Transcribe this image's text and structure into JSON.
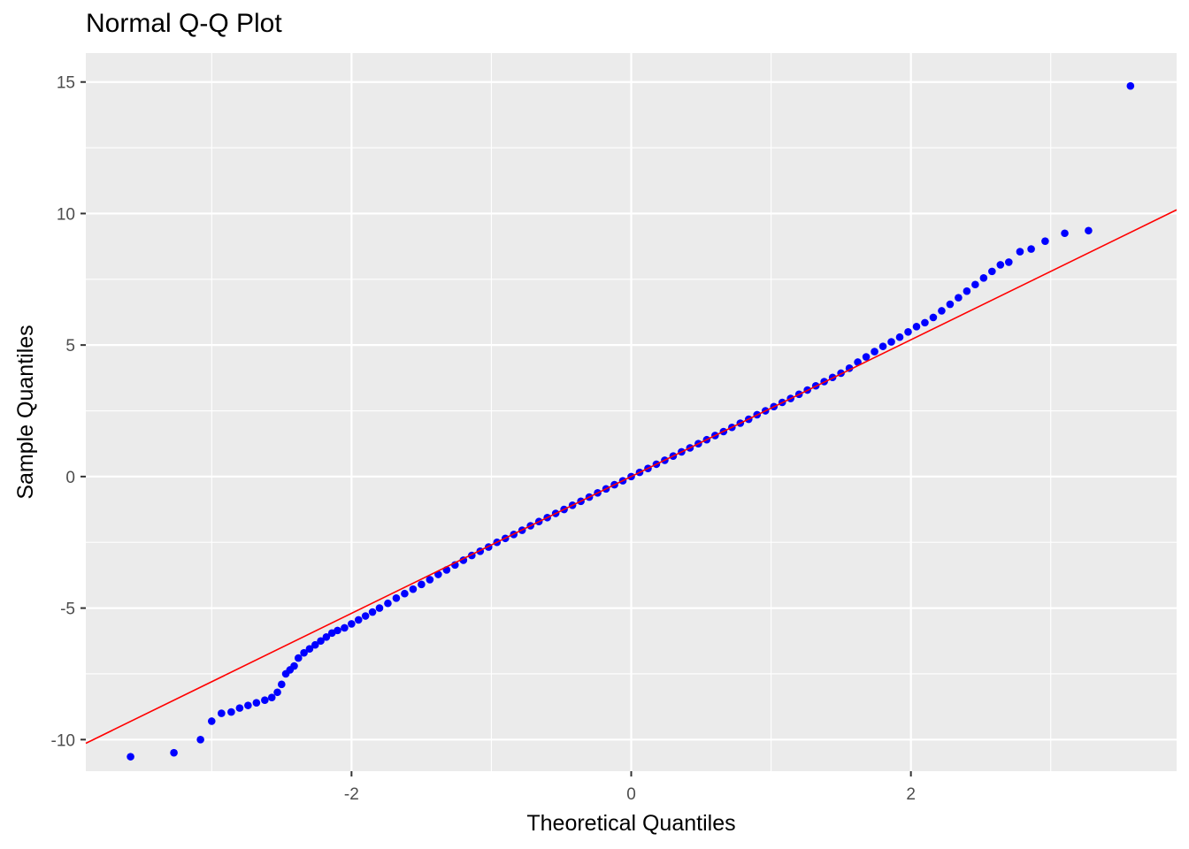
{
  "chart_data": {
    "type": "scatter",
    "title": "Normal Q-Q Plot",
    "xlabel": "Theoretical Quantiles",
    "ylabel": "Sample Quantiles",
    "xlim": [
      -3.9,
      3.9
    ],
    "ylim": [
      -11.2,
      16.1
    ],
    "x_ticks": [
      -2,
      0,
      2
    ],
    "x_tick_labels": [
      "-2",
      "0",
      "2"
    ],
    "y_ticks": [
      -10,
      -5,
      0,
      5,
      10,
      15
    ],
    "y_tick_labels": [
      "-10",
      "-5",
      "0",
      "5",
      "10",
      "15"
    ],
    "grid": true,
    "legend": "none",
    "colors": {
      "points": "#0000ff",
      "reference_line": "#ff0000",
      "panel_background": "#ebebeb",
      "grid": "#ffffff"
    },
    "reference_line": {
      "intercept": 0.0,
      "slope": 2.6
    },
    "points": [
      [
        -3.58,
        -10.65
      ],
      [
        -3.27,
        -10.5
      ],
      [
        -3.08,
        -10.0
      ],
      [
        -3.0,
        -9.3
      ],
      [
        -2.93,
        -9.0
      ],
      [
        -2.86,
        -8.95
      ],
      [
        -2.8,
        -8.8
      ],
      [
        -2.74,
        -8.7
      ],
      [
        -2.68,
        -8.6
      ],
      [
        -2.62,
        -8.5
      ],
      [
        -2.57,
        -8.4
      ],
      [
        -2.53,
        -8.2
      ],
      [
        -2.5,
        -7.9
      ],
      [
        -2.47,
        -7.5
      ],
      [
        -2.44,
        -7.35
      ],
      [
        -2.41,
        -7.2
      ],
      [
        -2.38,
        -6.9
      ],
      [
        -2.34,
        -6.7
      ],
      [
        -2.3,
        -6.55
      ],
      [
        -2.26,
        -6.4
      ],
      [
        -2.22,
        -6.25
      ],
      [
        -2.18,
        -6.1
      ],
      [
        -2.14,
        -5.95
      ],
      [
        -2.1,
        -5.85
      ],
      [
        -2.05,
        -5.75
      ],
      [
        -2.0,
        -5.6
      ],
      [
        -1.95,
        -5.45
      ],
      [
        -1.9,
        -5.3
      ],
      [
        -1.85,
        -5.15
      ],
      [
        -1.8,
        -5.0
      ],
      [
        -1.74,
        -4.82
      ],
      [
        -1.68,
        -4.62
      ],
      [
        -1.62,
        -4.45
      ],
      [
        -1.56,
        -4.28
      ],
      [
        -1.5,
        -4.1
      ],
      [
        -1.44,
        -3.92
      ],
      [
        -1.38,
        -3.72
      ],
      [
        -1.32,
        -3.55
      ],
      [
        -1.26,
        -3.36
      ],
      [
        -1.2,
        -3.18
      ],
      [
        -1.14,
        -3.0
      ],
      [
        -1.08,
        -2.84
      ],
      [
        -1.02,
        -2.68
      ],
      [
        -0.96,
        -2.5
      ],
      [
        -0.9,
        -2.35
      ],
      [
        -0.84,
        -2.2
      ],
      [
        -0.78,
        -2.04
      ],
      [
        -0.72,
        -1.87
      ],
      [
        -0.66,
        -1.71
      ],
      [
        -0.6,
        -1.56
      ],
      [
        -0.54,
        -1.4
      ],
      [
        -0.48,
        -1.25
      ],
      [
        -0.42,
        -1.09
      ],
      [
        -0.36,
        -0.94
      ],
      [
        -0.3,
        -0.78
      ],
      [
        -0.24,
        -0.62
      ],
      [
        -0.18,
        -0.47
      ],
      [
        -0.12,
        -0.31
      ],
      [
        -0.06,
        -0.16
      ],
      [
        0.0,
        0.0
      ],
      [
        0.06,
        0.16
      ],
      [
        0.12,
        0.31
      ],
      [
        0.18,
        0.47
      ],
      [
        0.24,
        0.62
      ],
      [
        0.3,
        0.78
      ],
      [
        0.36,
        0.94
      ],
      [
        0.42,
        1.09
      ],
      [
        0.48,
        1.25
      ],
      [
        0.54,
        1.4
      ],
      [
        0.6,
        1.56
      ],
      [
        0.66,
        1.71
      ],
      [
        0.72,
        1.87
      ],
      [
        0.78,
        2.03
      ],
      [
        0.84,
        2.18
      ],
      [
        0.9,
        2.35
      ],
      [
        0.96,
        2.5
      ],
      [
        1.02,
        2.66
      ],
      [
        1.08,
        2.82
      ],
      [
        1.14,
        2.97
      ],
      [
        1.2,
        3.13
      ],
      [
        1.26,
        3.29
      ],
      [
        1.32,
        3.45
      ],
      [
        1.38,
        3.61
      ],
      [
        1.44,
        3.77
      ],
      [
        1.5,
        3.93
      ],
      [
        1.56,
        4.12
      ],
      [
        1.62,
        4.35
      ],
      [
        1.68,
        4.55
      ],
      [
        1.74,
        4.75
      ],
      [
        1.8,
        4.95
      ],
      [
        1.86,
        5.12
      ],
      [
        1.92,
        5.3
      ],
      [
        1.98,
        5.5
      ],
      [
        2.04,
        5.7
      ],
      [
        2.1,
        5.85
      ],
      [
        2.16,
        6.05
      ],
      [
        2.22,
        6.3
      ],
      [
        2.28,
        6.55
      ],
      [
        2.34,
        6.8
      ],
      [
        2.4,
        7.05
      ],
      [
        2.46,
        7.3
      ],
      [
        2.52,
        7.55
      ],
      [
        2.58,
        7.8
      ],
      [
        2.64,
        8.05
      ],
      [
        2.7,
        8.15
      ],
      [
        2.78,
        8.55
      ],
      [
        2.86,
        8.65
      ],
      [
        2.96,
        8.95
      ],
      [
        3.1,
        9.25
      ],
      [
        3.27,
        9.35
      ],
      [
        3.57,
        14.85
      ]
    ]
  }
}
